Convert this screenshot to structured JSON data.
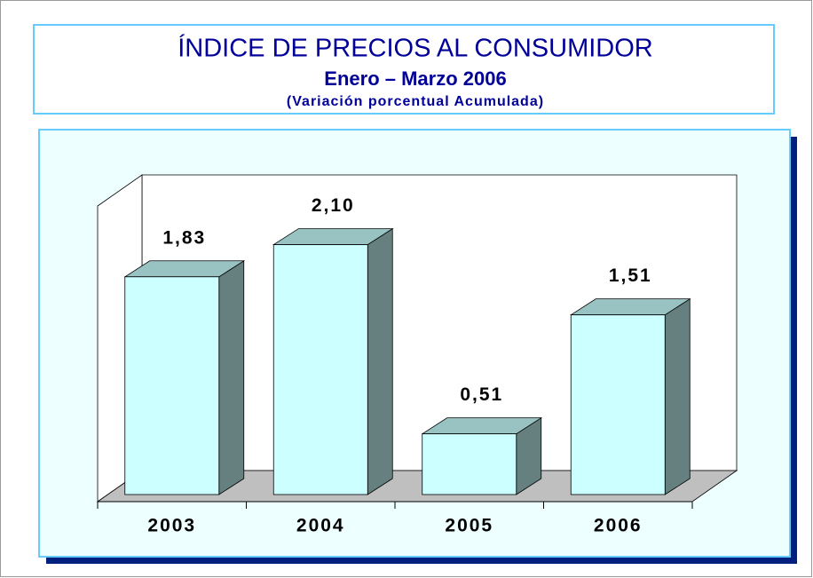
{
  "chart_data": {
    "type": "bar3d",
    "title": "ÍNDICE DE PRECIOS AL CONSUMIDOR",
    "subtitle": "Enero – Marzo 2006",
    "caption": "(Variación porcentual Acumulada)",
    "categories": [
      "2003",
      "2004",
      "2005",
      "2006"
    ],
    "values": [
      1.83,
      2.1,
      0.51,
      1.51
    ],
    "value_labels": [
      "1,83",
      "2,10",
      "0,51",
      "1,51"
    ],
    "color": "#ccffff"
  }
}
